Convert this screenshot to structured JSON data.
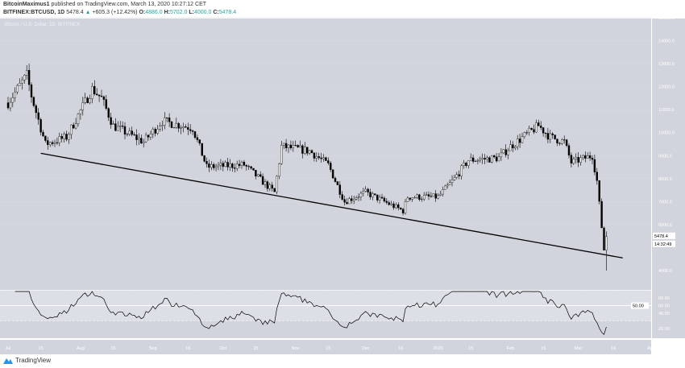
{
  "header": {
    "publisher": "BitcoinMaximus1",
    "published_text": "published on TradingView.com, March 13, 2020 10:27:12 CET",
    "symbol": "BITFINEX:BTCUSD, 1D",
    "last": "5478.4",
    "change": "+605.3 (+12.42%)",
    "o_label": "O:",
    "o": "4886.0",
    "h_label": "H:",
    "h": "5702.0",
    "l_label": "L:",
    "l": "4000.0",
    "c_label": "C:",
    "c": "5478.4"
  },
  "chart_data": {
    "type": "candlestick",
    "title": "Bitcoin / U.S. Dollar, 1D, BITFINEX",
    "ylim": [
      4000,
      15000
    ],
    "y_ticks": [
      "15000.0",
      "14000.0",
      "13000.0",
      "12000.0",
      "11000.0",
      "10000.0",
      "9000.0",
      "8000.0",
      "7000.0",
      "6000.0",
      "4000.0"
    ],
    "x_ticks": [
      "Jul",
      "15",
      "Aug",
      "15",
      "Sep",
      "16",
      "Oct",
      "15",
      "Nov",
      "15",
      "Dec",
      "16",
      "2020",
      "15",
      "Feb",
      "15",
      "Mar",
      "16",
      "Apr"
    ],
    "price_label": "5478.4",
    "countdown_label": "14:32:49",
    "approx_closes": [
      [
        "2019-07-01",
        11300
      ],
      [
        "2019-07-09",
        12500
      ],
      [
        "2019-07-11",
        11600
      ],
      [
        "2019-07-17",
        9500
      ],
      [
        "2019-07-26",
        9800
      ],
      [
        "2019-08-06",
        11900
      ],
      [
        "2019-08-10",
        11500
      ],
      [
        "2019-08-15",
        10300
      ],
      [
        "2019-08-28",
        9600
      ],
      [
        "2019-09-05",
        10500
      ],
      [
        "2019-09-18",
        10200
      ],
      [
        "2019-09-24",
        8500
      ],
      [
        "2019-10-10",
        8600
      ],
      [
        "2019-10-23",
        7400
      ],
      [
        "2019-10-26",
        9400
      ],
      [
        "2019-11-07",
        9200
      ],
      [
        "2019-11-15",
        8600
      ],
      [
        "2019-11-22",
        7000
      ],
      [
        "2019-12-01",
        7400
      ],
      [
        "2019-12-17",
        6600
      ],
      [
        "2019-12-19",
        7200
      ],
      [
        "2020-01-01",
        7200
      ],
      [
        "2020-01-08",
        8000
      ],
      [
        "2020-01-14",
        8800
      ],
      [
        "2020-01-27",
        8900
      ],
      [
        "2020-02-01",
        9400
      ],
      [
        "2020-02-13",
        10300
      ],
      [
        "2020-02-18",
        9800
      ],
      [
        "2020-02-24",
        9600
      ],
      [
        "2020-02-27",
        8700
      ],
      [
        "2020-03-07",
        9000
      ],
      [
        "2020-03-09",
        7900
      ],
      [
        "2020-03-12",
        4886
      ],
      [
        "2020-03-13",
        5478.4
      ]
    ],
    "trendline": [
      [
        "2019-07-15",
        9100
      ],
      [
        "2020-03-20",
        4550
      ]
    ],
    "rsi": {
      "ticks": [
        "60.00",
        "50.00",
        "40.00",
        "20.00"
      ],
      "current_label": "50.00",
      "levels": [
        70,
        50,
        30
      ]
    },
    "grid": true
  },
  "footer": {
    "brand": "TradingView"
  }
}
